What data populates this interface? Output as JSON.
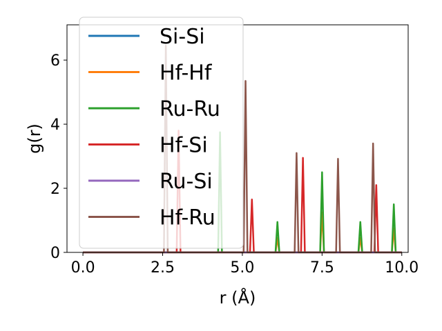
{
  "chart_data": {
    "type": "line",
    "title": "",
    "xlabel": "r (Å)",
    "ylabel": "g(r)",
    "xlim": [
      -0.5,
      10.2
    ],
    "ylim": [
      0,
      7.1
    ],
    "xticks": [
      0.0,
      2.5,
      5.0,
      7.5,
      10.0
    ],
    "xtick_labels": [
      "0.0",
      "2.5",
      "5.0",
      "7.5",
      "10.0"
    ],
    "yticks": [
      0,
      2,
      4,
      6
    ],
    "ytick_labels": [
      "0",
      "2",
      "4",
      "6"
    ],
    "grid": false,
    "legend_position": "upper-left",
    "series": [
      {
        "name": "Si-Si",
        "color": "#1f77b4",
        "peaks": []
      },
      {
        "name": "Hf-Hf",
        "color": "#ff7f0e",
        "peaks": [
          [
            6.1,
            0.45
          ],
          [
            7.5,
            1.25
          ],
          [
            8.7,
            0.45
          ],
          [
            9.75,
            0.75
          ]
        ]
      },
      {
        "name": "Ru-Ru",
        "color": "#2ca02c",
        "peaks": [
          [
            4.3,
            3.75
          ],
          [
            6.1,
            0.95
          ],
          [
            7.5,
            2.5
          ],
          [
            8.7,
            0.95
          ],
          [
            9.75,
            1.5
          ]
        ]
      },
      {
        "name": "Hf-Si",
        "color": "#d62728",
        "peaks": [
          [
            3.0,
            3.8
          ],
          [
            5.3,
            1.65
          ],
          [
            6.9,
            2.95
          ],
          [
            9.2,
            2.1
          ]
        ]
      },
      {
        "name": "Ru-Si",
        "color": "#9467bd",
        "peaks": []
      },
      {
        "name": "Hf-Ru",
        "color": "#8c564b",
        "peaks": [
          [
            2.6,
            6.45
          ],
          [
            5.1,
            5.35
          ],
          [
            6.7,
            3.1
          ],
          [
            8.0,
            2.92
          ],
          [
            9.1,
            3.4
          ]
        ]
      }
    ]
  }
}
